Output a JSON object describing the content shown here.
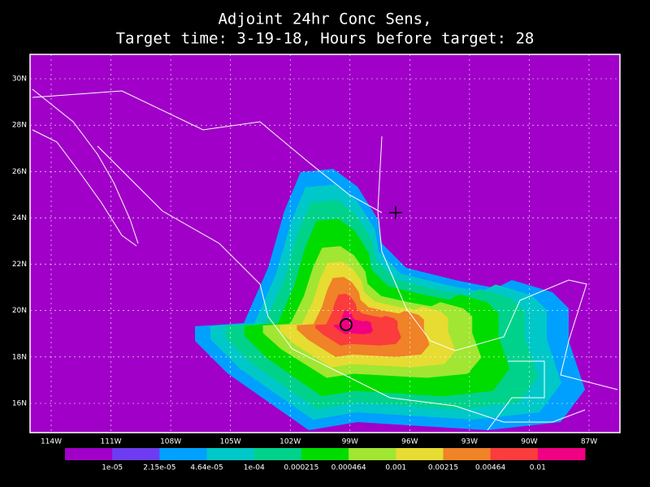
{
  "title": [
    "Adjoint 24hr Conc Sens,",
    "Target time: 3-19-18, Hours before target: 28"
  ],
  "map": {
    "xlim": [
      -115.06,
      -85.45
    ],
    "ylim": [
      14.74,
      31.05
    ],
    "xticks": [
      {
        "value": -114,
        "label": "114W"
      },
      {
        "value": -111,
        "label": "111W"
      },
      {
        "value": -108,
        "label": "108W"
      },
      {
        "value": -105,
        "label": "105W"
      },
      {
        "value": -102,
        "label": "102W"
      },
      {
        "value": -99,
        "label": "99W"
      },
      {
        "value": -96,
        "label": "96W"
      },
      {
        "value": -93,
        "label": "93W"
      },
      {
        "value": -90,
        "label": "90W"
      },
      {
        "value": -87,
        "label": "87W"
      }
    ],
    "yticks": [
      {
        "value": 16,
        "label": "16N"
      },
      {
        "value": 18,
        "label": "18N"
      },
      {
        "value": 20,
        "label": "20N"
      },
      {
        "value": 22,
        "label": "22N"
      },
      {
        "value": 24,
        "label": "24N"
      },
      {
        "value": 26,
        "label": "26N"
      },
      {
        "value": 28,
        "label": "28N"
      },
      {
        "value": 30,
        "label": "30N"
      }
    ]
  },
  "colorbar": {
    "colors": [
      "#a000c8",
      "#6e3cf0",
      "#00a0ff",
      "#00c8c8",
      "#00d28c",
      "#00dc00",
      "#a0e632",
      "#e6dc32",
      "#f08228",
      "#fa3c3c",
      "#f00082"
    ],
    "labels": [
      "1e-05",
      "2.15e-05",
      "4.64e-05",
      "1e-04",
      "0.000215",
      "0.000464",
      "0.001",
      "0.00215",
      "0.00464",
      "0.01"
    ]
  }
}
